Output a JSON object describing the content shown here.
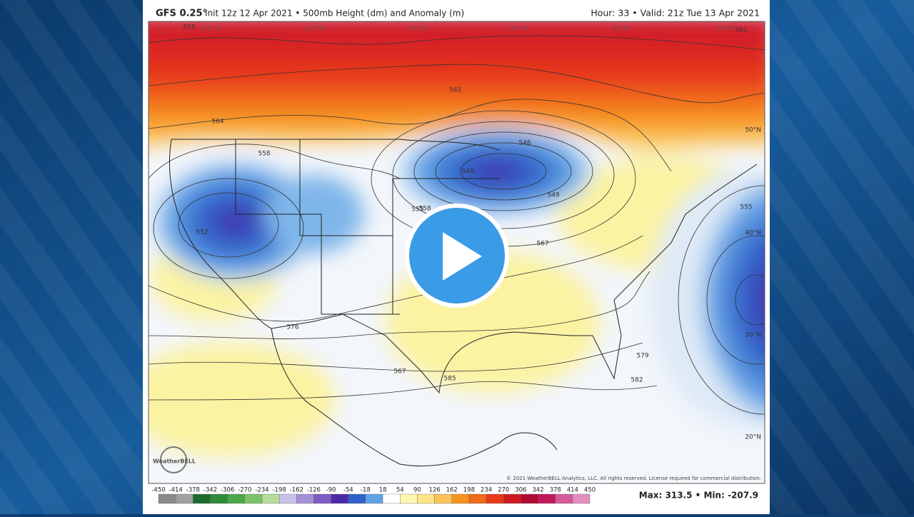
{
  "header": {
    "title": "GFS 0.25°",
    "subtitle": "Init 12z 12 Apr 2021 • 500mb Height (dm) and Anomaly (m)",
    "valid": "Hour: 33 • Valid: 21z Tue 13 Apr 2021"
  },
  "map": {
    "contour_labels": [
      "555",
      "558",
      "561",
      "564",
      "567",
      "555",
      "540",
      "546",
      "549",
      "552",
      "558",
      "567",
      "576",
      "579",
      "582",
      "585",
      "555",
      "561"
    ],
    "lat_labels": [
      "50°N",
      "40°N",
      "30°N",
      "20°N"
    ],
    "lon_labels": [
      "120°W",
      "110°W",
      "100°W",
      "90°W",
      "80°W",
      "70°W"
    ],
    "logo": "WeatherBELL",
    "copyright": "© 2021 WeatherBELL Analytics, LLC. All rights reserved. License required for commercial distribution."
  },
  "colorbar": {
    "ticks": [
      -450,
      -414,
      -378,
      -342,
      -306,
      -270,
      -234,
      -198,
      -162,
      -126,
      -90,
      -54,
      -18,
      18,
      54,
      90,
      126,
      162,
      198,
      234,
      270,
      306,
      342,
      378,
      414,
      450
    ]
  },
  "stats": "Max: 313.5 • Min: -207.9"
}
